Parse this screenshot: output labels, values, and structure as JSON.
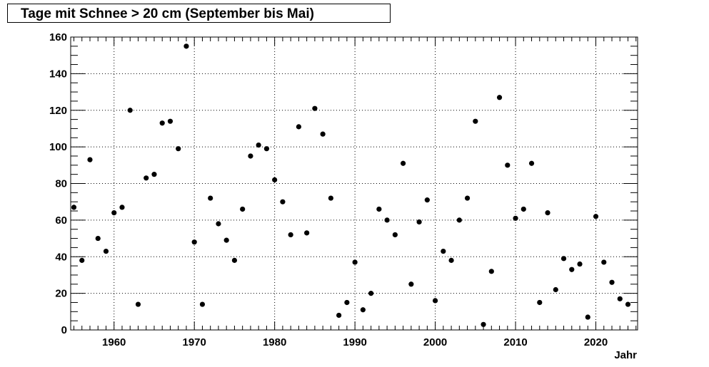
{
  "chart_data": {
    "type": "scatter",
    "title": "Tage mit Schnee > 20 cm (September bis Mai)",
    "xlabel": "Jahr",
    "ylabel": "",
    "xlim": [
      1954.6,
      2025.2
    ],
    "ylim": [
      0,
      160
    ],
    "xticks": [
      1960,
      1970,
      1980,
      1990,
      2000,
      2010,
      2020
    ],
    "yticks": [
      0,
      20,
      40,
      60,
      80,
      100,
      120,
      140,
      160
    ],
    "grid": true,
    "marker_color": "#000000",
    "x": [
      1955,
      1956,
      1957,
      1958,
      1959,
      1960,
      1961,
      1962,
      1963,
      1964,
      1965,
      1966,
      1967,
      1968,
      1969,
      1970,
      1971,
      1972,
      1973,
      1974,
      1975,
      1976,
      1977,
      1978,
      1979,
      1980,
      1981,
      1982,
      1983,
      1984,
      1985,
      1986,
      1987,
      1988,
      1989,
      1990,
      1991,
      1992,
      1993,
      1994,
      1995,
      1996,
      1997,
      1998,
      1999,
      2000,
      2001,
      2002,
      2003,
      2004,
      2005,
      2006,
      2007,
      2008,
      2009,
      2010,
      2011,
      2012,
      2013,
      2014,
      2015,
      2016,
      2017,
      2018,
      2019,
      2020,
      2021,
      2022,
      2023,
      2024
    ],
    "y": [
      67,
      38,
      93,
      50,
      43,
      64,
      67,
      120,
      14,
      83,
      85,
      113,
      114,
      99,
      155,
      48,
      14,
      72,
      58,
      49,
      38,
      66,
      95,
      101,
      99,
      82,
      70,
      52,
      111,
      53,
      121,
      107,
      72,
      8,
      15,
      37,
      11,
      20,
      66,
      60,
      52,
      91,
      25,
      59,
      71,
      16,
      43,
      38,
      60,
      72,
      114,
      3,
      32,
      127,
      90,
      61,
      66,
      91,
      15,
      64,
      22,
      39,
      33,
      36,
      7,
      62,
      37,
      26,
      17,
      14
    ]
  }
}
